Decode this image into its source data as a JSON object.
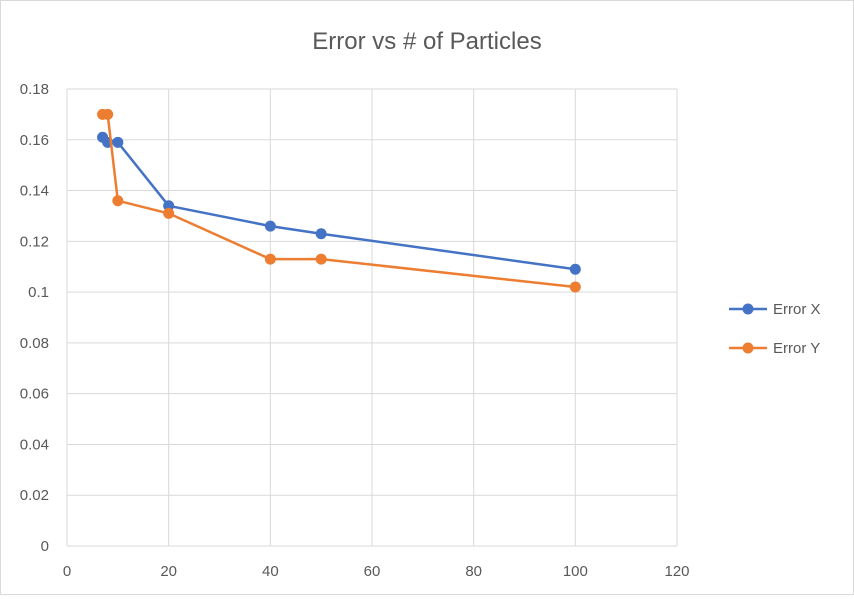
{
  "chart_data": {
    "type": "scatter",
    "title": "Error vs # of Particles",
    "xlabel": "",
    "ylabel": "",
    "xlim": [
      0,
      120
    ],
    "ylim": [
      0,
      0.18
    ],
    "x_ticks": [
      "0",
      "20",
      "40",
      "60",
      "80",
      "100",
      "120"
    ],
    "y_ticks": [
      "0",
      "0.02",
      "0.04",
      "0.06",
      "0.08",
      "0.1",
      "0.12",
      "0.14",
      "0.16",
      "0.18"
    ],
    "grid": true,
    "legend_position": "right",
    "series": [
      {
        "name": "Error X",
        "color": "#4472c4",
        "x": [
          7,
          8,
          10,
          20,
          40,
          50,
          100
        ],
        "y": [
          0.161,
          0.159,
          0.159,
          0.134,
          0.126,
          0.123,
          0.109
        ]
      },
      {
        "name": "Error Y",
        "color": "#ed7d31",
        "x": [
          7,
          8,
          10,
          20,
          40,
          50,
          100
        ],
        "y": [
          0.17,
          0.17,
          0.136,
          0.131,
          0.113,
          0.113,
          0.102
        ]
      }
    ]
  }
}
